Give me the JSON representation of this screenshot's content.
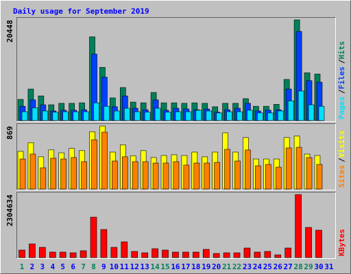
{
  "title": "Daily usage for September 2019",
  "legend_separator": "/",
  "chart_data": [
    {
      "type": "bar",
      "ylim": [
        0,
        20448
      ],
      "yticks": [
        20448
      ],
      "series": [
        {
          "name": "Hits",
          "color": "#00805c",
          "values": [
            4300,
            6400,
            5000,
            3200,
            3500,
            3500,
            3600,
            17000,
            10800,
            4600,
            6700,
            3750,
            3600,
            5700,
            3600,
            3600,
            3500,
            3600,
            3500,
            2800,
            3500,
            3500,
            4450,
            2900,
            2900,
            3300,
            8350,
            20448,
            9700,
            9450,
            null
          ]
        },
        {
          "name": "Files",
          "color": "#0040ff",
          "values": [
            2900,
            4200,
            3200,
            1950,
            2100,
            2100,
            2200,
            13500,
            8800,
            2800,
            5000,
            2500,
            2200,
            4200,
            2100,
            2500,
            2350,
            2200,
            2350,
            1700,
            2200,
            2500,
            3500,
            1950,
            2100,
            2200,
            6400,
            18100,
            8100,
            7800,
            null
          ]
        },
        {
          "name": "Pages",
          "color": "#00e0ff",
          "values": [
            1800,
            2600,
            1950,
            1700,
            1800,
            1800,
            1800,
            3600,
            2900,
            1950,
            2500,
            1800,
            1700,
            2500,
            1700,
            1800,
            1800,
            2100,
            1950,
            1550,
            1800,
            1800,
            2100,
            1550,
            1550,
            1950,
            4000,
            6000,
            3200,
            2900,
            null
          ]
        }
      ]
    },
    {
      "type": "bar",
      "ylim": [
        0,
        869
      ],
      "yticks": [
        869
      ],
      "series": [
        {
          "name": "Visits",
          "color": "#ffff00",
          "values": [
            520,
            640,
            445,
            540,
            500,
            560,
            530,
            790,
            869,
            510,
            610,
            460,
            530,
            435,
            463,
            473,
            463,
            510,
            445,
            510,
            775,
            510,
            710,
            415,
            415,
            415,
            710,
            730,
            482,
            463,
            null
          ]
        },
        {
          "name": "Sites",
          "color": "#ff8000",
          "values": [
            415,
            482,
            293,
            425,
            415,
            435,
            378,
            680,
            784,
            387,
            445,
            378,
            378,
            359,
            359,
            378,
            331,
            359,
            359,
            368,
            548,
            387,
            539,
            321,
            340,
            302,
            567,
            576,
            435,
            340,
            null
          ]
        }
      ]
    },
    {
      "type": "bar",
      "ylim": [
        0,
        2304634
      ],
      "yticks": [
        2304634
      ],
      "categories": [
        "1",
        "2",
        "3",
        "4",
        "5",
        "6",
        "7",
        "8",
        "9",
        "10",
        "11",
        "12",
        "13",
        "14",
        "15",
        "16",
        "17",
        "18",
        "19",
        "20",
        "21",
        "22",
        "23",
        "24",
        "25",
        "26",
        "27",
        "28",
        "29",
        "30",
        "31"
      ],
      "category_colors": [
        "#00805c",
        "#0000ff",
        "#0000ff",
        "#0000ff",
        "#0000ff",
        "#0000ff",
        "#00805c",
        "#00805c",
        "#0000ff",
        "#0000ff",
        "#0000ff",
        "#0000ff",
        "#0000ff",
        "#00805c",
        "#00805c",
        "#0000ff",
        "#0000ff",
        "#0000ff",
        "#0000ff",
        "#0000ff",
        "#00805c",
        "#00805c",
        "#0000ff",
        "#0000ff",
        "#0000ff",
        "#0000ff",
        "#0000ff",
        "#00805c",
        "#00805c",
        "#0000ff",
        "#0000ff"
      ],
      "series": [
        {
          "name": "KBytes",
          "color": "#ff0000",
          "values": [
            275000,
            500000,
            375000,
            200000,
            200000,
            175000,
            250000,
            1478000,
            1027000,
            375000,
            576000,
            225000,
            175000,
            325000,
            275000,
            200000,
            200000,
            200000,
            300000,
            150000,
            175000,
            175000,
            350000,
            200000,
            225000,
            100000,
            350000,
            2304634,
            1102000,
            1002000,
            null
          ]
        }
      ]
    }
  ]
}
